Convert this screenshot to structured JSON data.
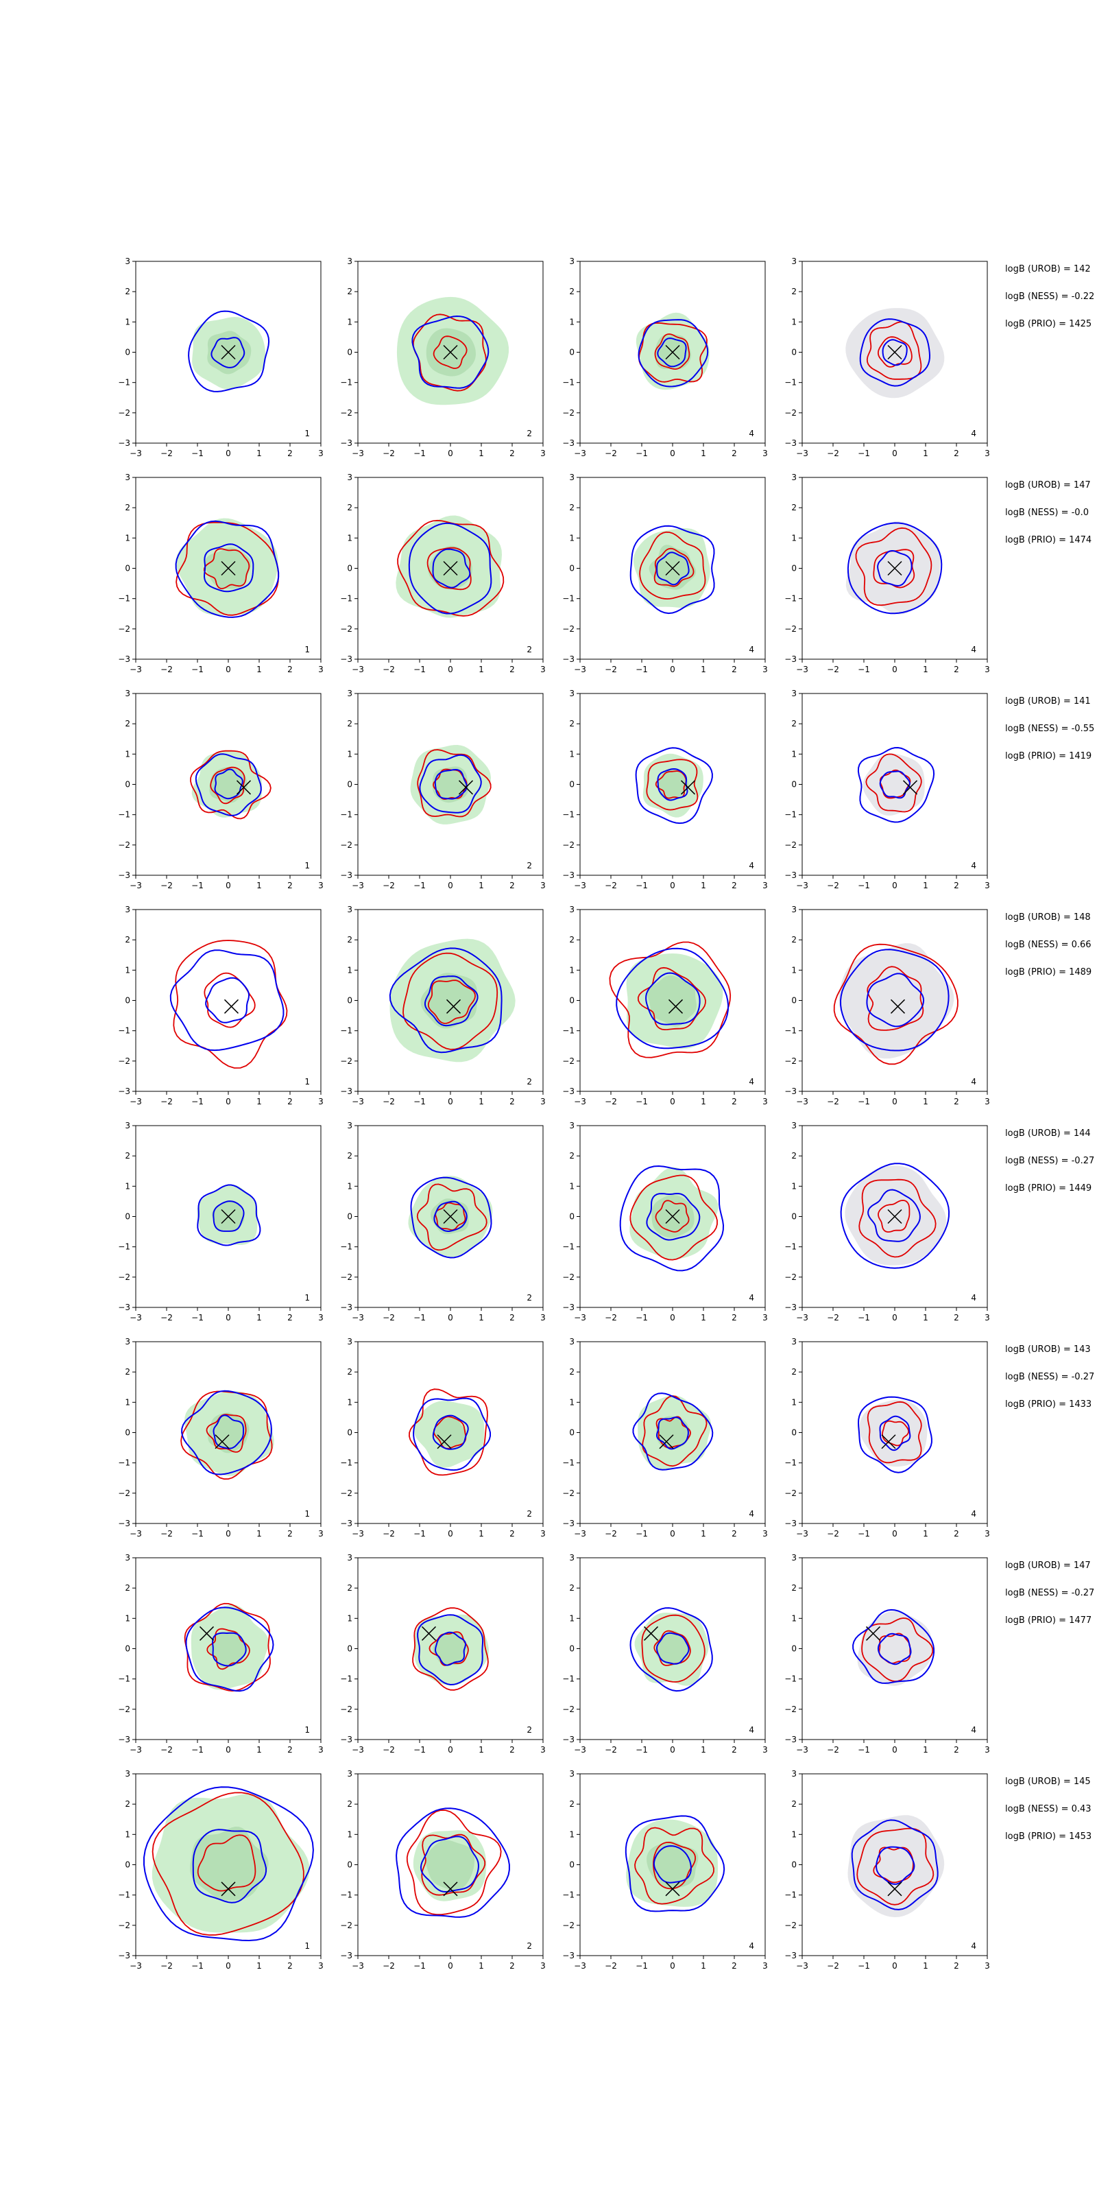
{
  "chart_data": {
    "type": "contour",
    "xlim": [
      -3,
      3
    ],
    "ylim": [
      -3,
      3
    ],
    "xticks": [
      -3,
      -2,
      -1,
      0,
      1,
      2,
      3
    ],
    "yticks": [
      -3,
      -2,
      -1,
      0,
      1,
      2,
      3
    ],
    "grid": false,
    "colors": {
      "green_fill": "#cdeecd",
      "green_fill_dark": "#b5dfb5",
      "grey_fill": "#e6e6ea",
      "blue_line": "#0000ee",
      "red_line": "#e00000",
      "marker": "#000000"
    },
    "column_corner_labels": [
      "1",
      "2",
      "4",
      "4"
    ],
    "column_fill": [
      "green",
      "green",
      "green",
      "grey"
    ],
    "rows": [
      {
        "marker": [
          0.0,
          0.0
        ],
        "logb": [
          "logB (UROB) = 142",
          "logB (NESS) = -0.22",
          "logB (PRIO) = 1425"
        ],
        "panels": [
          {
            "fill": [
              1.2,
              0.7
            ],
            "blue": [
              1.3,
              0.5
            ],
            "red": []
          },
          {
            "fill": [
              1.8,
              0.8
            ],
            "blue": [
              1.2
            ],
            "red": [
              1.2,
              0.5
            ]
          },
          {
            "fill": [
              1.2,
              0.6
            ],
            "blue": [
              1.1,
              0.45
            ],
            "red": [
              1.05,
              0.55
            ]
          },
          {
            "fill": [
              1.5
            ],
            "blue": [
              1.1,
              0.4
            ],
            "red": [
              0.9,
              0.5
            ]
          }
        ]
      },
      {
        "marker": [
          0.0,
          0.0
        ],
        "logb": [
          "logB (UROB) = 147",
          "logB (NESS) = -0.0",
          "logB (PRIO) = 1474"
        ],
        "panels": [
          {
            "fill": [
              1.6,
              0.7
            ],
            "blue": [
              1.6,
              0.8
            ],
            "red": [
              1.55,
              0.65
            ]
          },
          {
            "fill": [
              1.7,
              0.7
            ],
            "blue": [
              1.4,
              0.6
            ],
            "red": [
              1.6,
              0.7
            ]
          },
          {
            "fill": [
              1.3,
              0.7
            ],
            "blue": [
              1.4,
              0.5
            ],
            "red": [
              1.05,
              0.6
            ]
          },
          {
            "fill": [
              1.5
            ],
            "blue": [
              1.5,
              0.55
            ],
            "red": [
              1.2,
              0.65
            ]
          }
        ]
      },
      {
        "marker": [
          0.5,
          -0.1
        ],
        "logb": [
          "logB (UROB) = 141",
          "logB (NESS) = -0.55",
          "logB (PRIO) = 1419"
        ],
        "panels": [
          {
            "fill": [
              1.1,
              0.6
            ],
            "blue": [
              1.0,
              0.45
            ],
            "red": [
              1.1,
              0.55
            ]
          },
          {
            "fill": [
              1.3,
              0.6
            ],
            "blue": [
              0.95,
              0.5
            ],
            "red": [
              1.1,
              0.5
            ]
          },
          {
            "fill": [
              1.0,
              0.5
            ],
            "blue": [
              1.2,
              0.5
            ],
            "red": [
              0.85,
              0.45
            ]
          },
          {
            "fill": [
              1.0
            ],
            "blue": [
              1.2,
              0.45
            ],
            "red": [
              0.85,
              0.45
            ]
          }
        ]
      },
      {
        "marker": [
          0.1,
          -0.2
        ],
        "logb": [
          "logB (UROB) = 148",
          "logB (NESS) = 0.66",
          "logB (PRIO) = 1489"
        ],
        "panels": [
          {
            "fill": [],
            "blue": [
              1.7,
              0.7
            ],
            "red": [
              1.9,
              0.8
            ]
          },
          {
            "fill": [
              2.0,
              0.9
            ],
            "blue": [
              1.7,
              0.8
            ],
            "red": [
              1.5,
              0.7
            ]
          },
          {
            "fill": [
              1.6,
              0.8
            ],
            "blue": [
              1.7,
              0.85
            ],
            "red": [
              1.85,
              0.95
            ]
          },
          {
            "fill": [
              1.8
            ],
            "blue": [
              1.7,
              0.85
            ],
            "red": [
              1.85,
              0.95
            ]
          }
        ]
      },
      {
        "marker": [
          0.0,
          0.0
        ],
        "logb": [
          "logB (UROB) = 144",
          "logB (NESS) = -0.27",
          "logB (PRIO) = 1449"
        ],
        "panels": [
          {
            "fill": [
              1.0,
              0.5
            ],
            "blue": [
              1.0,
              0.5
            ],
            "red": []
          },
          {
            "fill": [
              1.3,
              0.6
            ],
            "blue": [
              1.3,
              0.5
            ],
            "red": [
              1.0,
              0.45
            ]
          },
          {
            "fill": [
              1.4,
              0.7
            ],
            "blue": [
              1.7,
              0.8
            ],
            "red": [
              1.3,
              0.5
            ]
          },
          {
            "fill": [
              1.6
            ],
            "blue": [
              1.7,
              0.8
            ],
            "red": [
              1.2,
              0.5
            ]
          }
        ]
      },
      {
        "marker": [
          -0.2,
          -0.3
        ],
        "logb": [
          "logB (UROB) = 143",
          "logB (NESS) = -0.27",
          "logB (PRIO) = 1433"
        ],
        "panels": [
          {
            "fill": [
              1.4,
              0.65
            ],
            "blue": [
              1.35,
              0.5
            ],
            "red": [
              1.4,
              0.6
            ]
          },
          {
            "fill": [
              1.1,
              0.5
            ],
            "blue": [
              1.2,
              0.55
            ],
            "red": [
              1.3,
              0.5
            ]
          },
          {
            "fill": [
              1.2,
              0.55
            ],
            "blue": [
              1.2,
              0.5
            ],
            "red": [
              1.0,
              0.5
            ]
          },
          {
            "fill": [
              1.1
            ],
            "blue": [
              1.2,
              0.5
            ],
            "red": [
              0.95,
              0.4
            ]
          }
        ]
      },
      {
        "marker": [
          -0.7,
          0.5
        ],
        "logb": [
          "logB (UROB) = 147",
          "logB (NESS) = -0.27",
          "logB (PRIO) = 1477"
        ],
        "panels": [
          {
            "fill": [
              1.3,
              0.6
            ],
            "blue": [
              1.35,
              0.55
            ],
            "red": [
              1.4,
              0.6
            ]
          },
          {
            "fill": [
              1.2,
              0.55
            ],
            "blue": [
              1.1,
              0.5
            ],
            "red": [
              1.25,
              0.55
            ]
          },
          {
            "fill": [
              1.2,
              0.55
            ],
            "blue": [
              1.3,
              0.5
            ],
            "red": [
              1.05,
              0.55
            ]
          },
          {
            "fill": [
              1.2
            ],
            "blue": [
              1.2,
              0.5
            ],
            "red": [
              1.0,
              0.5
            ]
          }
        ]
      },
      {
        "marker": [
          0.0,
          -0.8
        ],
        "logb": [
          "logB (UROB) = 145",
          "logB (NESS) = 0.43",
          "logB (PRIO) = 1453"
        ],
        "panels": [
          {
            "fill": [
              2.4,
              1.2
            ],
            "blue": [
              2.6,
              1.2
            ],
            "red": [
              2.3,
              0.9
            ]
          },
          {
            "fill": [
              1.2,
              0.8
            ],
            "blue": [
              1.8,
              0.9
            ],
            "red": [
              1.5,
              1.0
            ]
          },
          {
            "fill": [
              1.5,
              0.8
            ],
            "blue": [
              1.6,
              0.6
            ],
            "red": [
              1.2,
              0.7
            ]
          },
          {
            "fill": [
              1.6
            ],
            "blue": [
              1.4,
              0.6
            ],
            "red": [
              1.2,
              0.6
            ]
          }
        ]
      }
    ]
  }
}
